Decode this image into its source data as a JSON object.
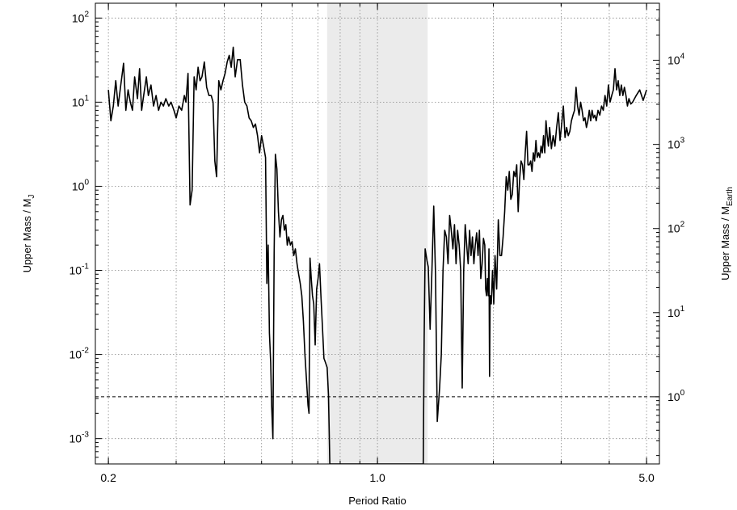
{
  "chart_data": {
    "type": "line",
    "title": "",
    "xlabel": "Period Ratio",
    "ylabel_left": {
      "base": "Upper Mass / M",
      "sub": "J"
    },
    "ylabel_right": {
      "base": "Upper Mass / M",
      "sub": "Earth"
    },
    "x_scale": "log",
    "y_scale": "log",
    "xlim": [
      0.185,
      5.4
    ],
    "ylim_left": [
      0.0005,
      150
    ],
    "ylim_right": [
      0.159,
      47670
    ],
    "x_ticks": [
      {
        "value": 0.2,
        "label": "0.2"
      },
      {
        "value": 1.0,
        "label": "1.0"
      },
      {
        "value": 5.0,
        "label": "5.0"
      }
    ],
    "x_minor_gridlines": [
      0.3,
      0.4,
      0.5,
      0.6,
      0.7,
      0.8,
      0.9,
      2,
      3,
      4
    ],
    "y_ticks_left": [
      {
        "value": 0.001,
        "base": "10",
        "exp": "-3"
      },
      {
        "value": 0.01,
        "base": "10",
        "exp": "-2"
      },
      {
        "value": 0.1,
        "base": "10",
        "exp": "-1"
      },
      {
        "value": 1,
        "base": "10",
        "exp": "0"
      },
      {
        "value": 10,
        "base": "10",
        "exp": "1"
      },
      {
        "value": 100,
        "base": "10",
        "exp": "2"
      }
    ],
    "y_ticks_right": [
      {
        "value": 1,
        "base": "10",
        "exp": "0"
      },
      {
        "value": 10,
        "base": "10",
        "exp": "1"
      },
      {
        "value": 100,
        "base": "10",
        "exp": "2"
      },
      {
        "value": 1000,
        "base": "10",
        "exp": "3"
      },
      {
        "value": 10000,
        "base": "10",
        "exp": "4"
      }
    ],
    "grid": true,
    "shaded_region": {
      "x": [
        0.74,
        1.35
      ],
      "color": "#ebebeb"
    },
    "reference_line": {
      "y_left": 0.00315,
      "style": "dashed"
    },
    "series": [
      {
        "color": "#000000",
        "points": [
          [
            0.2,
            14
          ],
          [
            0.203,
            6
          ],
          [
            0.206,
            9
          ],
          [
            0.209,
            18
          ],
          [
            0.212,
            9
          ],
          [
            0.215,
            15
          ],
          [
            0.219,
            29
          ],
          [
            0.222,
            8
          ],
          [
            0.225,
            14
          ],
          [
            0.228,
            10
          ],
          [
            0.231,
            8
          ],
          [
            0.234,
            20
          ],
          [
            0.238,
            11
          ],
          [
            0.241,
            25
          ],
          [
            0.244,
            8
          ],
          [
            0.247,
            12
          ],
          [
            0.251,
            20
          ],
          [
            0.254,
            12
          ],
          [
            0.258,
            16
          ],
          [
            0.262,
            9
          ],
          [
            0.266,
            12
          ],
          [
            0.27,
            8
          ],
          [
            0.274,
            10
          ],
          [
            0.278,
            9
          ],
          [
            0.282,
            11
          ],
          [
            0.287,
            9
          ],
          [
            0.291,
            10
          ],
          [
            0.296,
            8
          ],
          [
            0.3,
            6.5
          ],
          [
            0.305,
            9
          ],
          [
            0.31,
            8
          ],
          [
            0.315,
            12
          ],
          [
            0.318,
            10
          ],
          [
            0.322,
            22
          ],
          [
            0.326,
            0.6
          ],
          [
            0.33,
            0.9
          ],
          [
            0.334,
            20
          ],
          [
            0.338,
            14
          ],
          [
            0.342,
            26
          ],
          [
            0.346,
            18
          ],
          [
            0.35,
            20
          ],
          [
            0.355,
            30
          ],
          [
            0.36,
            15
          ],
          [
            0.365,
            12
          ],
          [
            0.37,
            12
          ],
          [
            0.374,
            10
          ],
          [
            0.378,
            2.0
          ],
          [
            0.382,
            1.3
          ],
          [
            0.387,
            18
          ],
          [
            0.392,
            14
          ],
          [
            0.397,
            18
          ],
          [
            0.402,
            22
          ],
          [
            0.407,
            30
          ],
          [
            0.412,
            36
          ],
          [
            0.417,
            26
          ],
          [
            0.422,
            45
          ],
          [
            0.427,
            20
          ],
          [
            0.433,
            32
          ],
          [
            0.44,
            32
          ],
          [
            0.446,
            16
          ],
          [
            0.452,
            10
          ],
          [
            0.458,
            9
          ],
          [
            0.464,
            6.5
          ],
          [
            0.47,
            6
          ],
          [
            0.476,
            5
          ],
          [
            0.482,
            5.5
          ],
          [
            0.488,
            4
          ],
          [
            0.494,
            2.5
          ],
          [
            0.5,
            4
          ],
          [
            0.506,
            3
          ],
          [
            0.512,
            2.2
          ],
          [
            0.516,
            0.07
          ],
          [
            0.52,
            0.2
          ],
          [
            0.524,
            0.018
          ],
          [
            0.528,
            0.008
          ],
          [
            0.531,
            0.0025
          ],
          [
            0.535,
            0.001
          ],
          [
            0.539,
            0.16
          ],
          [
            0.543,
            2.4
          ],
          [
            0.548,
            1.6
          ],
          [
            0.553,
            0.5
          ],
          [
            0.558,
            0.25
          ],
          [
            0.563,
            0.4
          ],
          [
            0.568,
            0.45
          ],
          [
            0.573,
            0.3
          ],
          [
            0.578,
            0.35
          ],
          [
            0.583,
            0.2
          ],
          [
            0.588,
            0.25
          ],
          [
            0.594,
            0.2
          ],
          [
            0.6,
            0.22
          ],
          [
            0.606,
            0.15
          ],
          [
            0.612,
            0.18
          ],
          [
            0.618,
            0.12
          ],
          [
            0.624,
            0.09
          ],
          [
            0.63,
            0.07
          ],
          [
            0.636,
            0.05
          ],
          [
            0.642,
            0.025
          ],
          [
            0.648,
            0.01
          ],
          [
            0.654,
            0.005
          ],
          [
            0.66,
            0.0025
          ],
          [
            0.664,
            0.002
          ],
          [
            0.668,
            0.14
          ],
          [
            0.673,
            0.08
          ],
          [
            0.678,
            0.05
          ],
          [
            0.683,
            0.04
          ],
          [
            0.689,
            0.013
          ],
          [
            0.695,
            0.06
          ],
          [
            0.701,
            0.08
          ],
          [
            0.707,
            0.12
          ],
          [
            0.713,
            0.05
          ],
          [
            0.72,
            0.02
          ],
          [
            0.726,
            0.009
          ],
          [
            0.733,
            0.008
          ],
          [
            0.74,
            0.007
          ],
          [
            0.746,
            0.0033
          ],
          [
            0.752,
            0.0005
          ],
          [
            1.315,
            0.0005
          ],
          [
            1.322,
            0.015
          ],
          [
            1.33,
            0.18
          ],
          [
            1.345,
            0.13
          ],
          [
            1.355,
            0.11
          ],
          [
            1.37,
            0.02
          ],
          [
            1.385,
            0.1
          ],
          [
            1.4,
            0.58
          ],
          [
            1.415,
            0.09
          ],
          [
            1.43,
            0.0016
          ],
          [
            1.45,
            0.004
          ],
          [
            1.465,
            0.01
          ],
          [
            1.48,
            0.1
          ],
          [
            1.495,
            0.3
          ],
          [
            1.51,
            0.25
          ],
          [
            1.525,
            0.12
          ],
          [
            1.54,
            0.45
          ],
          [
            1.555,
            0.3
          ],
          [
            1.57,
            0.18
          ],
          [
            1.585,
            0.35
          ],
          [
            1.6,
            0.12
          ],
          [
            1.615,
            0.3
          ],
          [
            1.63,
            0.2
          ],
          [
            1.645,
            0.1
          ],
          [
            1.66,
            0.004
          ],
          [
            1.675,
            0.1
          ],
          [
            1.69,
            0.35
          ],
          [
            1.705,
            0.2
          ],
          [
            1.72,
            0.12
          ],
          [
            1.735,
            0.3
          ],
          [
            1.75,
            0.15
          ],
          [
            1.765,
            0.25
          ],
          [
            1.78,
            0.12
          ],
          [
            1.795,
            0.2
          ],
          [
            1.81,
            0.28
          ],
          [
            1.825,
            0.15
          ],
          [
            1.84,
            0.3
          ],
          [
            1.855,
            0.08
          ],
          [
            1.87,
            0.12
          ],
          [
            1.885,
            0.24
          ],
          [
            1.9,
            0.2
          ],
          [
            1.91,
            0.06
          ],
          [
            1.92,
            0.05
          ],
          [
            1.93,
            0.08
          ],
          [
            1.94,
            0.05
          ],
          [
            1.948,
            0.18
          ],
          [
            1.955,
            0.0055
          ],
          [
            1.962,
            0.05
          ],
          [
            1.975,
            0.04
          ],
          [
            1.99,
            0.1
          ],
          [
            2.005,
            0.04
          ],
          [
            2.02,
            0.15
          ],
          [
            2.04,
            0.06
          ],
          [
            2.06,
            0.4
          ],
          [
            2.08,
            0.15
          ],
          [
            2.1,
            0.15
          ],
          [
            2.12,
            0.25
          ],
          [
            2.14,
            0.5
          ],
          [
            2.16,
            1.3
          ],
          [
            2.18,
            0.9
          ],
          [
            2.2,
            1.5
          ],
          [
            2.22,
            0.7
          ],
          [
            2.24,
            0.8
          ],
          [
            2.26,
            1.5
          ],
          [
            2.28,
            1.3
          ],
          [
            2.3,
            1.8
          ],
          [
            2.32,
            0.5
          ],
          [
            2.34,
            1.2
          ],
          [
            2.36,
            2
          ],
          [
            2.38,
            1.8
          ],
          [
            2.4,
            1.2
          ],
          [
            2.42,
            2.5
          ],
          [
            2.44,
            4.5
          ],
          [
            2.46,
            1.8
          ],
          [
            2.48,
            1.8
          ],
          [
            2.5,
            2
          ],
          [
            2.52,
            1.5
          ],
          [
            2.54,
            2.5
          ],
          [
            2.56,
            2
          ],
          [
            2.58,
            3.5
          ],
          [
            2.6,
            2.2
          ],
          [
            2.62,
            2.5
          ],
          [
            2.64,
            2.2
          ],
          [
            2.66,
            3
          ],
          [
            2.68,
            2.5
          ],
          [
            2.7,
            4
          ],
          [
            2.72,
            2.5
          ],
          [
            2.74,
            6
          ],
          [
            2.76,
            4
          ],
          [
            2.78,
            3
          ],
          [
            2.8,
            5
          ],
          [
            2.83,
            2.8
          ],
          [
            2.86,
            4
          ],
          [
            2.89,
            3
          ],
          [
            2.92,
            5
          ],
          [
            2.95,
            7.5
          ],
          [
            2.98,
            3.5
          ],
          [
            3.01,
            5.5
          ],
          [
            3.04,
            9
          ],
          [
            3.07,
            3.8
          ],
          [
            3.1,
            5
          ],
          [
            3.13,
            4
          ],
          [
            3.16,
            4.5
          ],
          [
            3.19,
            6
          ],
          [
            3.22,
            7
          ],
          [
            3.25,
            8
          ],
          [
            3.28,
            15
          ],
          [
            3.31,
            9
          ],
          [
            3.34,
            7
          ],
          [
            3.37,
            10
          ],
          [
            3.4,
            8
          ],
          [
            3.43,
            6
          ],
          [
            3.46,
            6.5
          ],
          [
            3.49,
            5
          ],
          [
            3.52,
            6
          ],
          [
            3.55,
            8
          ],
          [
            3.58,
            6
          ],
          [
            3.61,
            8
          ],
          [
            3.64,
            6.5
          ],
          [
            3.67,
            7
          ],
          [
            3.7,
            6
          ],
          [
            3.74,
            8
          ],
          [
            3.78,
            7
          ],
          [
            3.82,
            9
          ],
          [
            3.86,
            8
          ],
          [
            3.9,
            12
          ],
          [
            3.94,
            9
          ],
          [
            3.98,
            16
          ],
          [
            4.02,
            10
          ],
          [
            4.06,
            12
          ],
          [
            4.1,
            14
          ],
          [
            4.14,
            25
          ],
          [
            4.18,
            14
          ],
          [
            4.22,
            18
          ],
          [
            4.26,
            12
          ],
          [
            4.3,
            16
          ],
          [
            4.34,
            12
          ],
          [
            4.38,
            15
          ],
          [
            4.42,
            12
          ],
          [
            4.46,
            9
          ],
          [
            4.5,
            11
          ],
          [
            4.55,
            9.5
          ],
          [
            4.6,
            10
          ],
          [
            4.7,
            12
          ],
          [
            4.8,
            14
          ],
          [
            4.9,
            10.5
          ],
          [
            5.0,
            14
          ]
        ]
      }
    ]
  }
}
